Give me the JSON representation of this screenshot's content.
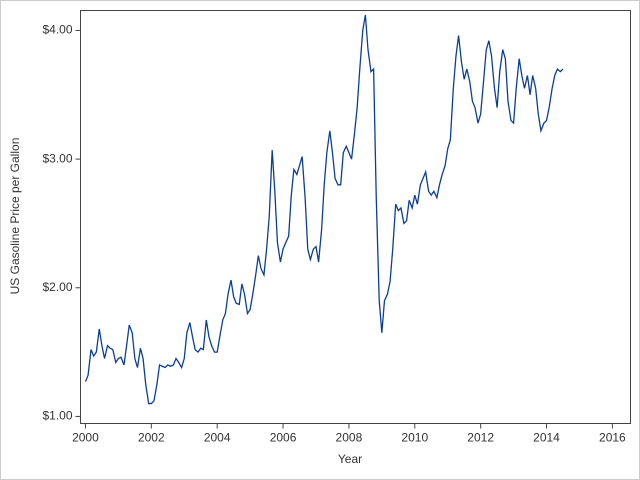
{
  "chart_data": {
    "type": "line",
    "xlabel": "Year",
    "ylabel": "US Gasoline Price per Gallon",
    "xlim": [
      1999.85,
      2016.55
    ],
    "xticks": [
      2000,
      2002,
      2004,
      2006,
      2008,
      2010,
      2012,
      2014,
      2016
    ],
    "ylim": [
      0.945,
      4.155
    ],
    "yticks": [
      {
        "value": 1,
        "label": "$1.00"
      },
      {
        "value": 2,
        "label": "$2.00"
      },
      {
        "value": 3,
        "label": "$3.00"
      },
      {
        "value": 4,
        "label": "$4.00"
      }
    ],
    "grid": false,
    "series": [
      {
        "color": "#0b3e97",
        "x": [
          2000.0,
          2000.08,
          2000.17,
          2000.25,
          2000.33,
          2000.42,
          2000.5,
          2000.58,
          2000.67,
          2000.75,
          2000.83,
          2000.92,
          2001.0,
          2001.08,
          2001.17,
          2001.25,
          2001.33,
          2001.42,
          2001.5,
          2001.58,
          2001.67,
          2001.75,
          2001.83,
          2001.92,
          2002.0,
          2002.08,
          2002.17,
          2002.25,
          2002.33,
          2002.42,
          2002.5,
          2002.58,
          2002.67,
          2002.75,
          2002.83,
          2002.92,
          2003.0,
          2003.08,
          2003.17,
          2003.25,
          2003.33,
          2003.42,
          2003.5,
          2003.58,
          2003.67,
          2003.75,
          2003.83,
          2003.92,
          2004.0,
          2004.08,
          2004.17,
          2004.25,
          2004.33,
          2004.42,
          2004.5,
          2004.58,
          2004.67,
          2004.75,
          2004.83,
          2004.92,
          2005.0,
          2005.08,
          2005.17,
          2005.25,
          2005.33,
          2005.42,
          2005.5,
          2005.58,
          2005.67,
          2005.75,
          2005.83,
          2005.92,
          2006.0,
          2006.08,
          2006.17,
          2006.25,
          2006.33,
          2006.42,
          2006.5,
          2006.58,
          2006.67,
          2006.75,
          2006.83,
          2006.92,
          2007.0,
          2007.08,
          2007.17,
          2007.25,
          2007.33,
          2007.42,
          2007.5,
          2007.58,
          2007.67,
          2007.75,
          2007.83,
          2007.92,
          2008.0,
          2008.08,
          2008.17,
          2008.25,
          2008.33,
          2008.42,
          2008.5,
          2008.58,
          2008.67,
          2008.75,
          2008.83,
          2008.92,
          2009.0,
          2009.08,
          2009.17,
          2009.25,
          2009.33,
          2009.42,
          2009.5,
          2009.58,
          2009.67,
          2009.75,
          2009.83,
          2009.92,
          2010.0,
          2010.08,
          2010.17,
          2010.25,
          2010.33,
          2010.42,
          2010.5,
          2010.58,
          2010.67,
          2010.75,
          2010.83,
          2010.92,
          2011.0,
          2011.08,
          2011.17,
          2011.25,
          2011.33,
          2011.42,
          2011.5,
          2011.58,
          2011.67,
          2011.75,
          2011.83,
          2011.92,
          2012.0,
          2012.08,
          2012.17,
          2012.25,
          2012.33,
          2012.42,
          2012.5,
          2012.58,
          2012.67,
          2012.75,
          2012.83,
          2012.92,
          2013.0,
          2013.08,
          2013.17,
          2013.25,
          2013.33,
          2013.42,
          2013.5,
          2013.58,
          2013.67,
          2013.75,
          2013.83,
          2013.92,
          2014.0,
          2014.08,
          2014.17,
          2014.25,
          2014.33,
          2014.42,
          2014.5
        ],
        "values": [
          1.27,
          1.32,
          1.52,
          1.47,
          1.5,
          1.68,
          1.55,
          1.45,
          1.55,
          1.53,
          1.52,
          1.42,
          1.45,
          1.46,
          1.4,
          1.55,
          1.71,
          1.65,
          1.45,
          1.38,
          1.53,
          1.45,
          1.25,
          1.1,
          1.1,
          1.12,
          1.25,
          1.4,
          1.39,
          1.38,
          1.4,
          1.39,
          1.4,
          1.45,
          1.42,
          1.38,
          1.45,
          1.65,
          1.73,
          1.62,
          1.52,
          1.5,
          1.53,
          1.52,
          1.75,
          1.62,
          1.55,
          1.5,
          1.5,
          1.62,
          1.75,
          1.8,
          1.95,
          2.06,
          1.93,
          1.88,
          1.87,
          2.03,
          1.95,
          1.8,
          1.83,
          1.95,
          2.1,
          2.25,
          2.15,
          2.1,
          2.3,
          2.55,
          3.07,
          2.75,
          2.35,
          2.2,
          2.3,
          2.35,
          2.4,
          2.72,
          2.92,
          2.88,
          2.95,
          3.02,
          2.7,
          2.3,
          2.22,
          2.3,
          2.32,
          2.2,
          2.45,
          2.8,
          3.05,
          3.22,
          3.05,
          2.85,
          2.8,
          2.8,
          3.05,
          3.1,
          3.05,
          3.0,
          3.2,
          3.4,
          3.7,
          4.0,
          4.12,
          3.85,
          3.68,
          3.7,
          2.7,
          1.9,
          1.65,
          1.9,
          1.95,
          2.05,
          2.3,
          2.65,
          2.6,
          2.62,
          2.5,
          2.52,
          2.68,
          2.62,
          2.72,
          2.65,
          2.8,
          2.85,
          2.9,
          2.75,
          2.72,
          2.75,
          2.7,
          2.8,
          2.88,
          2.95,
          3.08,
          3.15,
          3.55,
          3.8,
          3.96,
          3.75,
          3.62,
          3.7,
          3.6,
          3.45,
          3.4,
          3.28,
          3.35,
          3.58,
          3.85,
          3.92,
          3.8,
          3.55,
          3.4,
          3.68,
          3.85,
          3.78,
          3.45,
          3.3,
          3.28,
          3.55,
          3.78,
          3.65,
          3.55,
          3.65,
          3.5,
          3.65,
          3.55,
          3.35,
          3.22,
          3.28,
          3.3,
          3.4,
          3.55,
          3.65,
          3.7,
          3.68,
          3.7
        ]
      }
    ]
  }
}
